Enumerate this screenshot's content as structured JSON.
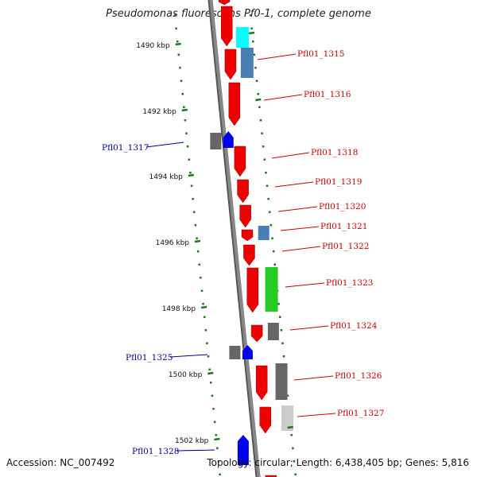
{
  "title": "Pseudomonas fluorescens Pf0-1, complete genome",
  "accession": "Accession: NC_007492",
  "topology": "Topology: circular; Length: 6,438,405 bp; Genes: 5,816",
  "colors": {
    "red": "#ee0000",
    "blue": "#0000ee",
    "cyan": "#00ffff",
    "steel": "#4a7fb5",
    "green": "#22cc22",
    "gray": "#666666",
    "lightgray": "#cccccc",
    "backbone": "#888888",
    "tick": "#1a7a1a",
    "label_forward": "#cc0000",
    "label_reverse": "#000099"
  },
  "scale_ticks": [
    "1490 kbp",
    "1492 kbp",
    "1494 kbp",
    "1496 kbp",
    "1498 kbp",
    "1500 kbp",
    "1502 kbp"
  ],
  "gene_labels": [
    {
      "name": "Pfl01_1315",
      "strand": "forward"
    },
    {
      "name": "Pfl01_1316",
      "strand": "forward"
    },
    {
      "name": "Pfl01_1317",
      "strand": "reverse"
    },
    {
      "name": "Pfl01_1318",
      "strand": "forward"
    },
    {
      "name": "Pfl01_1319",
      "strand": "forward"
    },
    {
      "name": "Pfl01_1320",
      "strand": "forward"
    },
    {
      "name": "Pfl01_1321",
      "strand": "forward"
    },
    {
      "name": "Pfl01_1322",
      "strand": "forward"
    },
    {
      "name": "Pfl01_1323",
      "strand": "forward"
    },
    {
      "name": "Pfl01_1324",
      "strand": "forward"
    },
    {
      "name": "Pfl01_1325",
      "strand": "reverse"
    },
    {
      "name": "Pfl01_1326",
      "strand": "forward"
    },
    {
      "name": "Pfl01_1327",
      "strand": "forward"
    },
    {
      "name": "Pfl01_1328",
      "strand": "reverse"
    }
  ]
}
